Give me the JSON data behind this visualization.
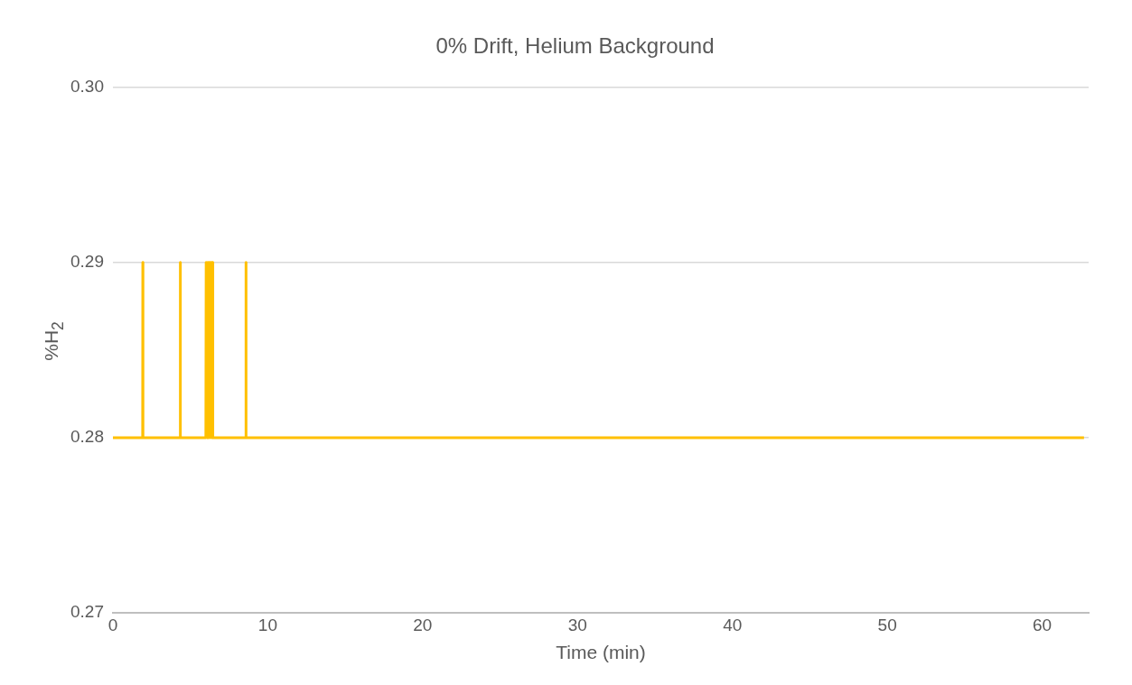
{
  "chart_data": {
    "type": "line",
    "title": "0% Drift, Helium Background",
    "xlabel": "Time (min)",
    "ylabel": "%H$_{2}$",
    "xlim": [
      0,
      63
    ],
    "xticks": [
      0,
      10,
      20,
      30,
      40,
      50,
      60
    ],
    "ylim": [
      0.27,
      0.3
    ],
    "yticks": [
      {
        "value": 0.27,
        "label": "0.27"
      },
      {
        "value": 0.28,
        "label": "0.28"
      },
      {
        "value": 0.29,
        "label": "0.29"
      },
      {
        "value": 0.3,
        "label": "0.30"
      }
    ],
    "grid": "y",
    "legend": false,
    "marker": "none",
    "line_style": "solid",
    "series": [
      {
        "color": "#ffc000",
        "x": [
          0,
          1.92,
          1.93,
          1.94,
          4.34,
          4.35,
          4.36,
          6.0,
          6.02,
          6.08,
          6.12,
          6.18,
          6.22,
          6.28,
          6.32,
          6.38,
          6.42,
          6.45,
          8.58,
          8.59,
          8.6,
          62.7
        ],
        "values": [
          0.28,
          0.28,
          0.29,
          0.28,
          0.28,
          0.29,
          0.28,
          0.28,
          0.29,
          0.28,
          0.29,
          0.28,
          0.29,
          0.28,
          0.29,
          0.28,
          0.29,
          0.28,
          0.28,
          0.29,
          0.28,
          0.28
        ]
      }
    ]
  }
}
